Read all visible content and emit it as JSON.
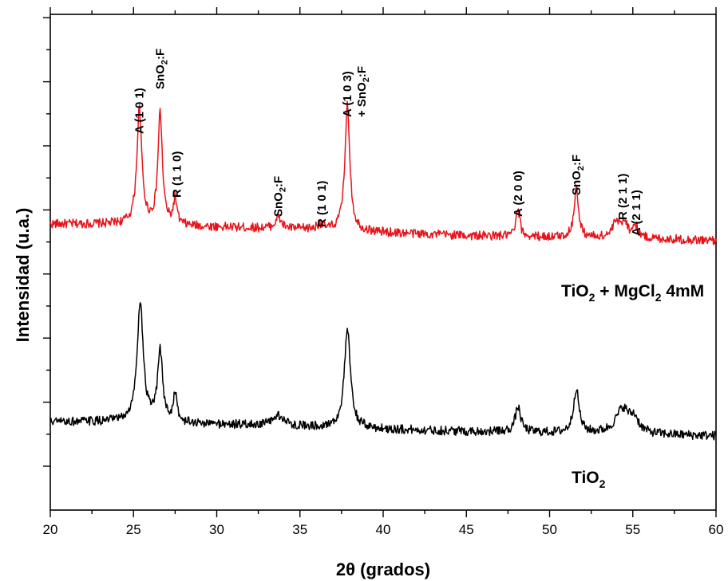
{
  "chart_data": {
    "type": "line",
    "xlabel": "2θ (grados)",
    "ylabel": "Intensidad (u.a.)",
    "xlim": [
      20,
      60
    ],
    "x_ticks": [
      "20",
      "25",
      "30",
      "35",
      "40",
      "45",
      "50",
      "55",
      "60"
    ],
    "y_ticks_labeled": false,
    "grid": false,
    "colors": {
      "red": "#e8141b",
      "black": "#000000"
    },
    "series": [
      {
        "name": "TiO2 + MgCl2 4mM",
        "color": "#e8141b",
        "baseline": [
          [
            20,
            0.3
          ],
          [
            24,
            0.3
          ],
          [
            30,
            0.24
          ],
          [
            36,
            0.19
          ],
          [
            40,
            0.13
          ],
          [
            45,
            0.07
          ],
          [
            50,
            0.04
          ],
          [
            55,
            0.02
          ],
          [
            60,
            -0.03
          ]
        ],
        "peaks": [
          [
            25.35,
            2.28,
            0.18
          ],
          [
            26.6,
            2.22,
            0.16
          ],
          [
            27.5,
            0.52,
            0.12
          ],
          [
            33.7,
            0.22,
            0.22
          ],
          [
            36.2,
            0.1,
            0.2
          ],
          [
            37.85,
            2.5,
            0.18
          ],
          [
            48.1,
            0.52,
            0.14
          ],
          [
            51.6,
            0.98,
            0.16
          ],
          [
            54.0,
            0.3,
            0.25
          ],
          [
            54.5,
            0.32,
            0.2
          ],
          [
            55.15,
            0.24,
            0.2
          ]
        ],
        "noise": 0.09
      },
      {
        "name": "TiO2",
        "color": "#000000",
        "baseline": [
          [
            20,
            0.25
          ],
          [
            24,
            0.25
          ],
          [
            30,
            0.2
          ],
          [
            36,
            0.15
          ],
          [
            40,
            0.1
          ],
          [
            45,
            0.06
          ],
          [
            50,
            0.03
          ],
          [
            55,
            0.0
          ],
          [
            60,
            -0.03
          ]
        ],
        "peaks": [
          [
            25.4,
            2.4,
            0.22
          ],
          [
            26.6,
            1.4,
            0.18
          ],
          [
            27.5,
            0.6,
            0.12
          ],
          [
            33.7,
            0.2,
            0.4
          ],
          [
            37.85,
            1.95,
            0.22
          ],
          [
            48.1,
            0.5,
            0.2
          ],
          [
            51.6,
            0.88,
            0.2
          ],
          [
            54.4,
            0.5,
            0.5
          ],
          [
            55.1,
            0.25,
            0.3
          ]
        ],
        "noise": 0.09
      }
    ],
    "series_labels": [
      {
        "main": "TiO",
        "sub1": "2",
        "mid": " + MgCl",
        "sub2": "2",
        "tail": " 4mM"
      },
      {
        "main": "TiO",
        "sub1": "2",
        "mid": "",
        "sub2": "",
        "tail": ""
      }
    ],
    "annotations": [
      {
        "x": 25.35,
        "lines": [
          {
            "main": "A (1 0 1)"
          }
        ]
      },
      {
        "x": 26.6,
        "lines": [
          {
            "main": "SnO",
            "sub": "2",
            "tail": ":F"
          }
        ]
      },
      {
        "x": 27.6,
        "lines": [
          {
            "main": "R (1 1 0)"
          }
        ]
      },
      {
        "x": 33.7,
        "lines": [
          {
            "main": "SnO",
            "sub": "2",
            "tail": ":F"
          }
        ]
      },
      {
        "x": 36.3,
        "lines": [
          {
            "main": "R (1 0 1)"
          }
        ]
      },
      {
        "x": 37.85,
        "lines": [
          {
            "main": "A (1 0 3)"
          },
          {
            "main": "+ SnO",
            "sub": "2",
            "tail": ":F"
          }
        ]
      },
      {
        "x": 48.1,
        "lines": [
          {
            "main": "A (2 0 0)"
          }
        ]
      },
      {
        "x": 51.6,
        "lines": [
          {
            "main": "SnO",
            "sub": "2",
            "tail": ":F"
          }
        ]
      },
      {
        "x": 54.4,
        "lines": [
          {
            "main": "R (2 1 1)"
          }
        ]
      },
      {
        "x": 55.2,
        "lines": [
          {
            "main": "A (2 1 1)"
          }
        ]
      }
    ]
  }
}
